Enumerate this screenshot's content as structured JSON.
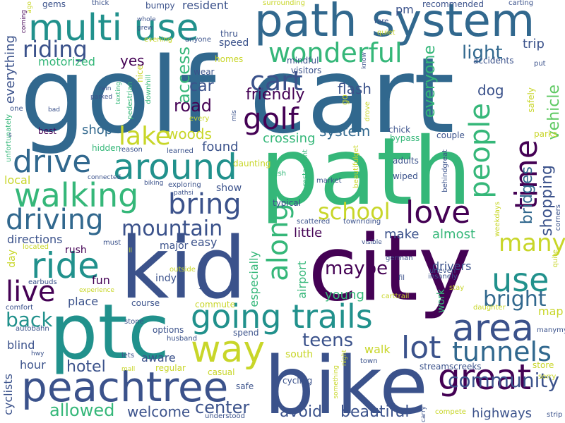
{
  "palette": {
    "dark_purple": "#440154",
    "indigo": "#3b528b",
    "blue": "#31688e",
    "teal": "#21918c",
    "green": "#35b779",
    "light_green": "#5ec962",
    "yellow": "#c8d629",
    "bright_yellow": "#fde725"
  },
  "words": [
    {
      "text": "golf cart",
      "color": "#31688e"
    },
    {
      "text": "path",
      "color": "#35b779"
    },
    {
      "text": "city",
      "color": "#440154"
    },
    {
      "text": "bike",
      "color": "#3b528b"
    },
    {
      "text": "kid",
      "color": "#3b528b"
    },
    {
      "text": "ptc",
      "color": "#21918c"
    },
    {
      "text": "path system",
      "color": "#31688e"
    },
    {
      "text": "multi use",
      "color": "#21918c"
    },
    {
      "text": "peachtree",
      "color": "#3b528b"
    },
    {
      "text": "way",
      "color": "#c8d629"
    },
    {
      "text": "going trails",
      "color": "#21918c"
    },
    {
      "text": "area",
      "color": "#3b528b"
    },
    {
      "text": "around",
      "color": "#21918c"
    },
    {
      "text": "walking",
      "color": "#35b779"
    },
    {
      "text": "great",
      "color": "#440154"
    },
    {
      "text": "ride",
      "color": "#21918c"
    },
    {
      "text": "lot",
      "color": "#3b528b"
    },
    {
      "text": "tunnels",
      "color": "#31688e"
    },
    {
      "text": "time",
      "color": "#440154"
    },
    {
      "text": "along",
      "color": "#35b779"
    },
    {
      "text": "drive",
      "color": "#31688e"
    },
    {
      "text": "love",
      "color": "#440154"
    },
    {
      "text": "use",
      "color": "#21918c"
    },
    {
      "text": "wonderful",
      "color": "#35b779"
    },
    {
      "text": "golf",
      "color": "#440154"
    },
    {
      "text": "cart",
      "color": "#3b528b"
    },
    {
      "text": "bring",
      "color": "#3b528b"
    },
    {
      "text": "driving",
      "color": "#31688e"
    },
    {
      "text": "lake",
      "color": "#c8d629"
    },
    {
      "text": "people",
      "color": "#35b779"
    },
    {
      "text": "live",
      "color": "#440154"
    },
    {
      "text": "mountain",
      "color": "#3b528b"
    },
    {
      "text": "school",
      "color": "#c8d629"
    },
    {
      "text": "riding",
      "color": "#3b528b"
    },
    {
      "text": "many",
      "color": "#c8d629"
    },
    {
      "text": "bright",
      "color": "#31688e"
    },
    {
      "text": "community",
      "color": "#3b528b"
    },
    {
      "text": "back",
      "color": "#21918c"
    },
    {
      "text": "maybe",
      "color": "#440154"
    },
    {
      "text": "teens",
      "color": "#3b528b"
    },
    {
      "text": "allowed",
      "color": "#35b779"
    },
    {
      "text": "hotel",
      "color": "#3b528b"
    },
    {
      "text": "center",
      "color": "#3b528b"
    },
    {
      "text": "beautiful",
      "color": "#3b528b"
    },
    {
      "text": "avoid",
      "color": "#3b528b"
    },
    {
      "text": "welcome",
      "color": "#3b528b"
    },
    {
      "text": "highways",
      "color": "#3b528b"
    },
    {
      "text": "shopping",
      "color": "#3b528b"
    },
    {
      "text": "bridges",
      "color": "#31688e"
    },
    {
      "text": "vehicle",
      "color": "#5ec962"
    },
    {
      "text": "everyone",
      "color": "#35b779"
    },
    {
      "text": "light",
      "color": "#31688e"
    },
    {
      "text": "trip",
      "color": "#3b528b"
    },
    {
      "text": "flash",
      "color": "#3b528b"
    },
    {
      "text": "dog",
      "color": "#3b528b"
    },
    {
      "text": "friendly",
      "color": "#440154"
    },
    {
      "text": "road",
      "color": "#440154"
    },
    {
      "text": "car",
      "color": "#3b528b"
    },
    {
      "text": "access",
      "color": "#35b779"
    },
    {
      "text": "woods",
      "color": "#c8d629"
    },
    {
      "text": "shop",
      "color": "#31688e"
    },
    {
      "text": "found",
      "color": "#3b528b"
    },
    {
      "text": "system",
      "color": "#31688e"
    },
    {
      "text": "crossing",
      "color": "#35b779"
    },
    {
      "text": "yes",
      "color": "#440154"
    },
    {
      "text": "motorized",
      "color": "#35b779"
    },
    {
      "text": "everything",
      "color": "#3b528b"
    },
    {
      "text": "speed",
      "color": "#3b528b"
    },
    {
      "text": "resident",
      "color": "#3b528b"
    },
    {
      "text": "pm",
      "color": "#3b528b"
    },
    {
      "text": "directions",
      "color": "#3b528b"
    },
    {
      "text": "local",
      "color": "#c8d629"
    },
    {
      "text": "easy",
      "color": "#3b528b"
    },
    {
      "text": "show",
      "color": "#3b528b"
    },
    {
      "text": "little",
      "color": "#440154"
    },
    {
      "text": "make",
      "color": "#3b528b"
    },
    {
      "text": "almost",
      "color": "#35b779"
    },
    {
      "text": "especially",
      "color": "#35b779"
    },
    {
      "text": "airport",
      "color": "#35b779"
    },
    {
      "text": "young",
      "color": "#35b779"
    },
    {
      "text": "drivers",
      "color": "#3b528b"
    },
    {
      "text": "fun",
      "color": "#440154"
    },
    {
      "text": "place",
      "color": "#3b528b"
    },
    {
      "text": "blind",
      "color": "#3b528b"
    },
    {
      "text": "aware",
      "color": "#3b528b"
    },
    {
      "text": "hour",
      "color": "#3b528b"
    },
    {
      "text": "walk",
      "color": "#c8d629"
    },
    {
      "text": "south",
      "color": "#c8d629"
    },
    {
      "text": "work",
      "color": "#35b779"
    },
    {
      "text": "map",
      "color": "#c8d629"
    },
    {
      "text": "cyclists",
      "color": "#3b528b"
    },
    {
      "text": "day",
      "color": "#c8d629"
    },
    {
      "text": "rush",
      "color": "#440154"
    },
    {
      "text": "major",
      "color": "#3b528b"
    },
    {
      "text": "indy",
      "color": "#3b528b"
    },
    {
      "text": "course",
      "color": "#3b528b"
    },
    {
      "text": "options",
      "color": "#3b528b"
    },
    {
      "text": "commute",
      "color": "#c8d629"
    },
    {
      "text": "spend",
      "color": "#3b528b"
    },
    {
      "text": "husband",
      "color": "#3b528b"
    },
    {
      "text": "casual",
      "color": "#c8d629"
    },
    {
      "text": "regular",
      "color": "#c8d629"
    },
    {
      "text": "safe",
      "color": "#3b528b"
    },
    {
      "text": "understood",
      "color": "#3b528b"
    },
    {
      "text": "compete",
      "color": "#c8d629"
    },
    {
      "text": "carry",
      "color": "#3b528b"
    },
    {
      "text": "strip",
      "color": "#3b528b"
    },
    {
      "text": "store",
      "color": "#c8d629"
    },
    {
      "text": "sorry",
      "color": "#c8d629"
    },
    {
      "text": "manymy",
      "color": "#3b528b"
    },
    {
      "text": "streamscreeks",
      "color": "#3b528b"
    },
    {
      "text": "town",
      "color": "#3b528b"
    },
    {
      "text": "cycling",
      "color": "#3b528b"
    },
    {
      "text": "carttrail",
      "color": "#c8d629"
    },
    {
      "text": "fil",
      "color": "#3b528b"
    },
    {
      "text": "german",
      "color": "#3b528b"
    },
    {
      "text": "uneven",
      "color": "#3b528b"
    },
    {
      "text": "insanely",
      "color": "#3b528b"
    },
    {
      "text": "stay",
      "color": "#c8d629"
    },
    {
      "text": "daughter",
      "color": "#c8d629"
    },
    {
      "text": "quite",
      "color": "#c8d629"
    },
    {
      "text": "corners",
      "color": "#3b528b"
    },
    {
      "text": "weekdays",
      "color": "#c8d629"
    },
    {
      "text": "behindgreat",
      "color": "#3b528b"
    },
    {
      "text": "wiped",
      "color": "#3b528b"
    },
    {
      "text": "adults",
      "color": "#3b528b"
    },
    {
      "text": "bypass",
      "color": "#35b779"
    },
    {
      "text": "chick",
      "color": "#3b528b"
    },
    {
      "text": "couple",
      "color": "#3b528b"
    },
    {
      "text": "parks",
      "color": "#c8d629"
    },
    {
      "text": "safely",
      "color": "#c8d629"
    },
    {
      "text": "put",
      "color": "#3b528b"
    },
    {
      "text": "accidents",
      "color": "#3b528b"
    },
    {
      "text": "recommended",
      "color": "#3b528b"
    },
    {
      "text": "carting",
      "color": "#3b528b"
    },
    {
      "text": "rare",
      "color": "#3b528b"
    },
    {
      "text": "quiet",
      "color": "#c8d629"
    },
    {
      "text": "surrounding",
      "color": "#c8d629"
    },
    {
      "text": "know",
      "color": "#3b528b"
    },
    {
      "text": "drove",
      "color": "#c8d629"
    },
    {
      "text": "visitors",
      "color": "#3b528b"
    },
    {
      "text": "mindful",
      "color": "#3b528b"
    },
    {
      "text": "thru",
      "color": "#3b528b"
    },
    {
      "text": "homes",
      "color": "#c8d629"
    },
    {
      "text": "anyone",
      "color": "#3b528b"
    },
    {
      "text": "wear",
      "color": "#3b528b"
    },
    {
      "text": "go",
      "color": "#c8d629"
    },
    {
      "text": "daunting",
      "color": "#c8d629"
    },
    {
      "text": "mis",
      "color": "#3b528b"
    },
    {
      "text": "every",
      "color": "#c8d629"
    },
    {
      "text": "reason",
      "color": "#3b528b"
    },
    {
      "text": "learned",
      "color": "#3b528b"
    },
    {
      "text": "fresh",
      "color": "#35b779"
    },
    {
      "text": "restaurant",
      "color": "#35b779"
    },
    {
      "text": "beautifulget",
      "color": "#c8d629"
    },
    {
      "text": "market",
      "color": "#3b528b"
    },
    {
      "text": "typical",
      "color": "#3b528b"
    },
    {
      "text": "scattered",
      "color": "#3b528b"
    },
    {
      "text": "townriding",
      "color": "#3b528b"
    },
    {
      "text": "visible",
      "color": "#3b528b"
    },
    {
      "text": "exploring",
      "color": "#3b528b"
    },
    {
      "text": "pathsi",
      "color": "#3b528b"
    },
    {
      "text": "biking",
      "color": "#3b528b"
    },
    {
      "text": "takelong",
      "color": "#3b528b"
    },
    {
      "text": "outside",
      "color": "#c8d629"
    },
    {
      "text": "located",
      "color": "#c8d629"
    },
    {
      "text": "must",
      "color": "#3b528b"
    },
    {
      "text": "ll",
      "color": "#c8d629"
    },
    {
      "text": "connected",
      "color": "#3b528b"
    },
    {
      "text": "hidden",
      "color": "#35b779"
    },
    {
      "text": "best",
      "color": "#440154"
    },
    {
      "text": "unfortunately",
      "color": "#35b779"
    },
    {
      "text": "s",
      "color": "#3b528b"
    },
    {
      "text": "one",
      "color": "#3b528b"
    },
    {
      "text": "bad",
      "color": "#3b528b"
    },
    {
      "text": "rain",
      "color": "#3b528b"
    },
    {
      "text": "parked",
      "color": "#3b528b"
    },
    {
      "text": "texting",
      "color": "#35b779"
    },
    {
      "text": "pedestrian",
      "color": "#35b779"
    },
    {
      "text": "downhill",
      "color": "#35b779"
    },
    {
      "text": "nice",
      "color": "#c8d629"
    },
    {
      "text": "evening",
      "color": "#c8d629"
    },
    {
      "text": "whole",
      "color": "#3b528b"
    },
    {
      "text": "grew",
      "color": "#3b528b"
    },
    {
      "text": "bumpy",
      "color": "#3b528b"
    },
    {
      "text": "gems",
      "color": "#3b528b"
    },
    {
      "text": "thick",
      "color": "#3b528b"
    },
    {
      "text": "coming",
      "color": "#440154"
    },
    {
      "text": "ago",
      "color": "#c8d629"
    },
    {
      "text": "earbuds",
      "color": "#3b528b"
    },
    {
      "text": "experience",
      "color": "#c8d629"
    },
    {
      "text": "comfort",
      "color": "#3b528b"
    },
    {
      "text": "stone",
      "color": "#3b528b"
    },
    {
      "text": "autobahn",
      "color": "#3b528b"
    },
    {
      "text": "hwy",
      "color": "#3b528b"
    },
    {
      "text": "mall",
      "color": "#c8d629"
    },
    {
      "text": "lets",
      "color": "#3b528b"
    },
    {
      "text": "night",
      "color": "#c8d629"
    },
    {
      "text": "something",
      "color": "#c8d629"
    }
  ]
}
